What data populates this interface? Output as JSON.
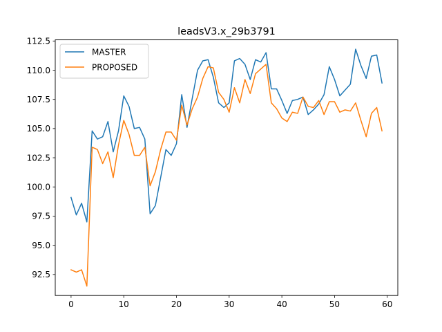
{
  "chart_data": {
    "type": "line",
    "title": "leadsV3.x_29b3791",
    "xlabel": "",
    "ylabel": "",
    "xlim": [
      -3,
      62
    ],
    "ylim": [
      90.7,
      112.6
    ],
    "xticks": [
      0,
      10,
      20,
      30,
      40,
      50,
      60
    ],
    "yticks": [
      92.5,
      95.0,
      97.5,
      100.0,
      102.5,
      105.0,
      107.5,
      110.0,
      112.5
    ],
    "ytick_labels": [
      "92.5",
      "95.0",
      "97.5",
      "100.0",
      "102.5",
      "105.0",
      "107.5",
      "110.0",
      "112.5"
    ],
    "grid": false,
    "legend_position": "top-left",
    "series": [
      {
        "name": "MASTER",
        "color": "#1f77b4",
        "x": [
          0,
          1,
          2,
          3,
          4,
          5,
          6,
          7,
          8,
          9,
          10,
          11,
          12,
          13,
          14,
          15,
          16,
          17,
          18,
          19,
          20,
          21,
          22,
          23,
          24,
          25,
          26,
          27,
          28,
          29,
          30,
          31,
          32,
          33,
          34,
          35,
          36,
          37,
          38,
          39,
          40,
          41,
          42,
          43,
          44,
          45,
          46,
          47,
          48,
          49,
          50,
          51,
          52,
          53,
          54,
          55,
          56,
          57,
          58,
          59
        ],
        "values": [
          99.1,
          97.6,
          98.6,
          97.0,
          104.8,
          104.1,
          104.3,
          105.6,
          103.0,
          104.8,
          107.8,
          106.9,
          105.0,
          105.1,
          104.1,
          97.7,
          98.4,
          100.8,
          103.2,
          102.7,
          103.7,
          107.9,
          105.1,
          107.6,
          110.0,
          110.8,
          110.9,
          109.4,
          107.2,
          106.8,
          107.2,
          110.8,
          111.0,
          110.5,
          109.2,
          110.9,
          110.7,
          111.5,
          108.4,
          108.4,
          107.4,
          106.3,
          107.4,
          107.5,
          107.7,
          106.2,
          106.6,
          107.1,
          107.9,
          110.3,
          109.2,
          107.8,
          108.3,
          108.8,
          111.8,
          110.4,
          109.3,
          111.2,
          111.3,
          108.9
        ]
      },
      {
        "name": "PROPOSED",
        "color": "#ff7f0e",
        "x": [
          0,
          1,
          2,
          3,
          4,
          5,
          6,
          7,
          8,
          9,
          10,
          11,
          12,
          13,
          14,
          15,
          16,
          17,
          18,
          19,
          20,
          21,
          22,
          23,
          24,
          25,
          26,
          27,
          28,
          29,
          30,
          31,
          32,
          33,
          34,
          35,
          36,
          37,
          38,
          39,
          40,
          41,
          42,
          43,
          44,
          45,
          46,
          47,
          48,
          49,
          50,
          51,
          52,
          53,
          54,
          55,
          56,
          57,
          58,
          59
        ],
        "values": [
          92.9,
          92.7,
          92.9,
          91.5,
          103.4,
          103.2,
          102.0,
          103.0,
          100.8,
          103.6,
          105.7,
          104.5,
          102.7,
          102.7,
          103.4,
          100.1,
          101.3,
          103.2,
          104.7,
          104.7,
          104.0,
          107.0,
          105.3,
          106.7,
          107.7,
          109.3,
          110.3,
          110.2,
          108.1,
          107.5,
          106.4,
          108.5,
          107.2,
          109.2,
          108.0,
          109.7,
          110.1,
          110.5,
          107.2,
          106.7,
          105.9,
          105.6,
          106.4,
          106.3,
          107.7,
          106.9,
          106.8,
          107.4,
          106.2,
          107.3,
          107.3,
          106.4,
          106.6,
          106.5,
          107.2,
          105.7,
          104.3,
          106.3,
          106.8,
          104.8
        ]
      }
    ]
  }
}
